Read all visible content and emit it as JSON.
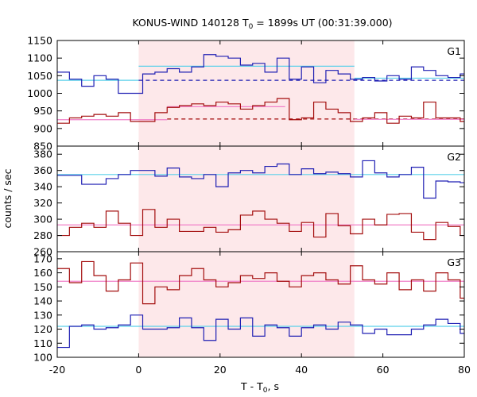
{
  "chart_data": {
    "type": "line",
    "title_main": "KONUS-WIND 140128 T",
    "title_sub": "0",
    "title_rest": " = 1899s UT (00:31:39.000)",
    "ylabel": "counts / sec",
    "xlabel_main": "T - T",
    "xlabel_sub": "0",
    "xlabel_rest": ", s",
    "xlim": [
      -20,
      80
    ],
    "xticks": [
      -20,
      0,
      20,
      40,
      60,
      80
    ],
    "shaded_interval": [
      0,
      53
    ],
    "colors": {
      "blue": "#1f1fb3",
      "red": "#a30d0d",
      "cyan": "#5ad0ea",
      "pink": "#f080c8",
      "shade": "#fde8ea"
    },
    "panels": [
      {
        "label": "G1",
        "ylim": [
          850,
          1150
        ],
        "yticks": [
          850,
          900,
          950,
          1000,
          1050,
          1100,
          1150
        ],
        "series": [
          {
            "color": "blue",
            "x": [
              -20,
              -17,
              -14,
              -11,
              -8,
              -5,
              -2,
              1,
              4,
              7,
              10,
              13,
              16,
              19,
              22,
              25,
              28,
              31,
              34,
              37,
              40,
              43,
              46,
              49,
              52,
              55,
              58,
              61,
              64,
              67,
              70,
              73,
              76,
              79,
              82
            ],
            "y": [
              1060,
              1040,
              1020,
              1050,
              1040,
              1000,
              1000,
              1055,
              1060,
              1070,
              1060,
              1075,
              1110,
              1105,
              1100,
              1080,
              1085,
              1060,
              1100,
              1040,
              1075,
              1030,
              1065,
              1055,
              1040,
              1045,
              1035,
              1050,
              1040,
              1075,
              1065,
              1050,
              1045,
              1055,
              1055
            ]
          },
          {
            "color": "red",
            "x": [
              -20,
              -17,
              -14,
              -11,
              -8,
              -5,
              -2,
              1,
              4,
              7,
              10,
              13,
              16,
              19,
              22,
              25,
              28,
              31,
              34,
              37,
              40,
              43,
              46,
              49,
              52,
              55,
              58,
              61,
              64,
              67,
              70,
              73,
              76,
              79,
              82
            ],
            "y": [
              915,
              930,
              935,
              940,
              935,
              945,
              920,
              920,
              945,
              960,
              965,
              970,
              965,
              975,
              970,
              955,
              965,
              975,
              985,
              925,
              930,
              975,
              955,
              945,
              920,
              930,
              945,
              915,
              935,
              930,
              975,
              930,
              930,
              920,
              925
            ]
          }
        ],
        "backgrounds": [
          {
            "color": "cyan",
            "x": [
              -20,
              0
            ],
            "y": 1037,
            "style": "solid"
          },
          {
            "color": "cyan",
            "x": [
              0,
              53
            ],
            "y": 1077,
            "style": "solid"
          },
          {
            "color": "cyan",
            "x": [
              53,
              80
            ],
            "y": 1043,
            "style": "solid"
          },
          {
            "color": "blue",
            "x": [
              0,
              80
            ],
            "y": 1037,
            "style": "dashed"
          },
          {
            "color": "pink",
            "x": [
              -20,
              7
            ],
            "y": 925,
            "style": "solid"
          },
          {
            "color": "pink",
            "x": [
              7,
              36
            ],
            "y": 962,
            "style": "solid"
          },
          {
            "color": "red",
            "x": [
              7,
              80
            ],
            "y": 927,
            "style": "dashed"
          },
          {
            "color": "pink",
            "x": [
              53,
              80
            ],
            "y": 926,
            "style": "solid"
          }
        ]
      },
      {
        "label": "G2",
        "ylim": [
          260,
          390
        ],
        "yticks": [
          260,
          280,
          300,
          320,
          340,
          360,
          380
        ],
        "series": [
          {
            "color": "blue",
            "x": [
              -20,
              -14,
              -8,
              -5,
              -2,
              4,
              7,
              10,
              13,
              16,
              19,
              22,
              25,
              28,
              31,
              34,
              37,
              40,
              43,
              46,
              49,
              52,
              55,
              58,
              61,
              64,
              67,
              70,
              73,
              76,
              79,
              82
            ],
            "y": [
              354,
              343,
              350,
              355,
              360,
              353,
              363,
              352,
              350,
              355,
              340,
              357,
              360,
              357,
              365,
              368,
              355,
              362,
              356,
              358,
              356,
              352,
              372,
              357,
              352,
              355,
              364,
              326,
              347,
              346,
              345,
              345
            ],
            "first_width": 6
          },
          {
            "color": "red",
            "x": [
              -20,
              -17,
              -14,
              -11,
              -8,
              -5,
              -2,
              1,
              4,
              7,
              10,
              13,
              16,
              19,
              22,
              25,
              28,
              31,
              34,
              37,
              40,
              43,
              46,
              49,
              52,
              55,
              58,
              61,
              64,
              67,
              70,
              73,
              76,
              79,
              82
            ],
            "y": [
              280,
              290,
              295,
              290,
              310,
              295,
              280,
              312,
              290,
              300,
              285,
              285,
              290,
              284,
              287,
              305,
              310,
              300,
              295,
              285,
              296,
              278,
              307,
              292,
              282,
              300,
              293,
              306,
              307,
              284,
              275,
              296,
              291,
              280,
              293
            ]
          }
        ],
        "backgrounds": [
          {
            "color": "cyan",
            "x": [
              -20,
              80
            ],
            "y": 355,
            "style": "solid"
          },
          {
            "color": "pink",
            "x": [
              -20,
              80
            ],
            "y": 293,
            "style": "solid"
          }
        ]
      },
      {
        "label": "G3",
        "ylim": [
          100,
          175
        ],
        "yticks": [
          100,
          110,
          120,
          130,
          140,
          150,
          160,
          170
        ],
        "series": [
          {
            "color": "blue",
            "x": [
              -20,
              -17,
              -14,
              -11,
              -8,
              -5,
              -2,
              1,
              4,
              7,
              10,
              13,
              16,
              19,
              22,
              25,
              28,
              31,
              34,
              37,
              40,
              43,
              46,
              49,
              52,
              55,
              58,
              61,
              64,
              67,
              70,
              73,
              76,
              79,
              82
            ],
            "y": [
              107,
              122,
              123,
              120,
              121,
              123,
              130,
              120,
              120,
              121,
              128,
              121,
              112,
              127,
              120,
              128,
              115,
              123,
              121,
              115,
              121,
              123,
              120,
              125,
              123,
              117,
              120,
              116,
              116,
              120,
              123,
              127,
              124,
              117,
              120
            ]
          },
          {
            "color": "red",
            "x": [
              -20,
              -17,
              -14,
              -11,
              -8,
              -5,
              -2,
              1,
              4,
              7,
              10,
              13,
              16,
              19,
              22,
              25,
              28,
              31,
              34,
              37,
              40,
              43,
              46,
              49,
              52,
              55,
              58,
              61,
              64,
              67,
              70,
              73,
              76,
              79,
              82
            ],
            "y": [
              163,
              153,
              168,
              158,
              147,
              155,
              167,
              138,
              150,
              148,
              158,
              163,
              155,
              150,
              153,
              158,
              156,
              160,
              154,
              150,
              158,
              160,
              155,
              152,
              165,
              155,
              152,
              160,
              148,
              155,
              147,
              160,
              155,
              142,
              150
            ]
          }
        ],
        "backgrounds": [
          {
            "color": "cyan",
            "x": [
              -20,
              80
            ],
            "y": 122,
            "style": "solid"
          },
          {
            "color": "pink",
            "x": [
              -20,
              80
            ],
            "y": 154,
            "style": "solid"
          }
        ]
      }
    ]
  }
}
